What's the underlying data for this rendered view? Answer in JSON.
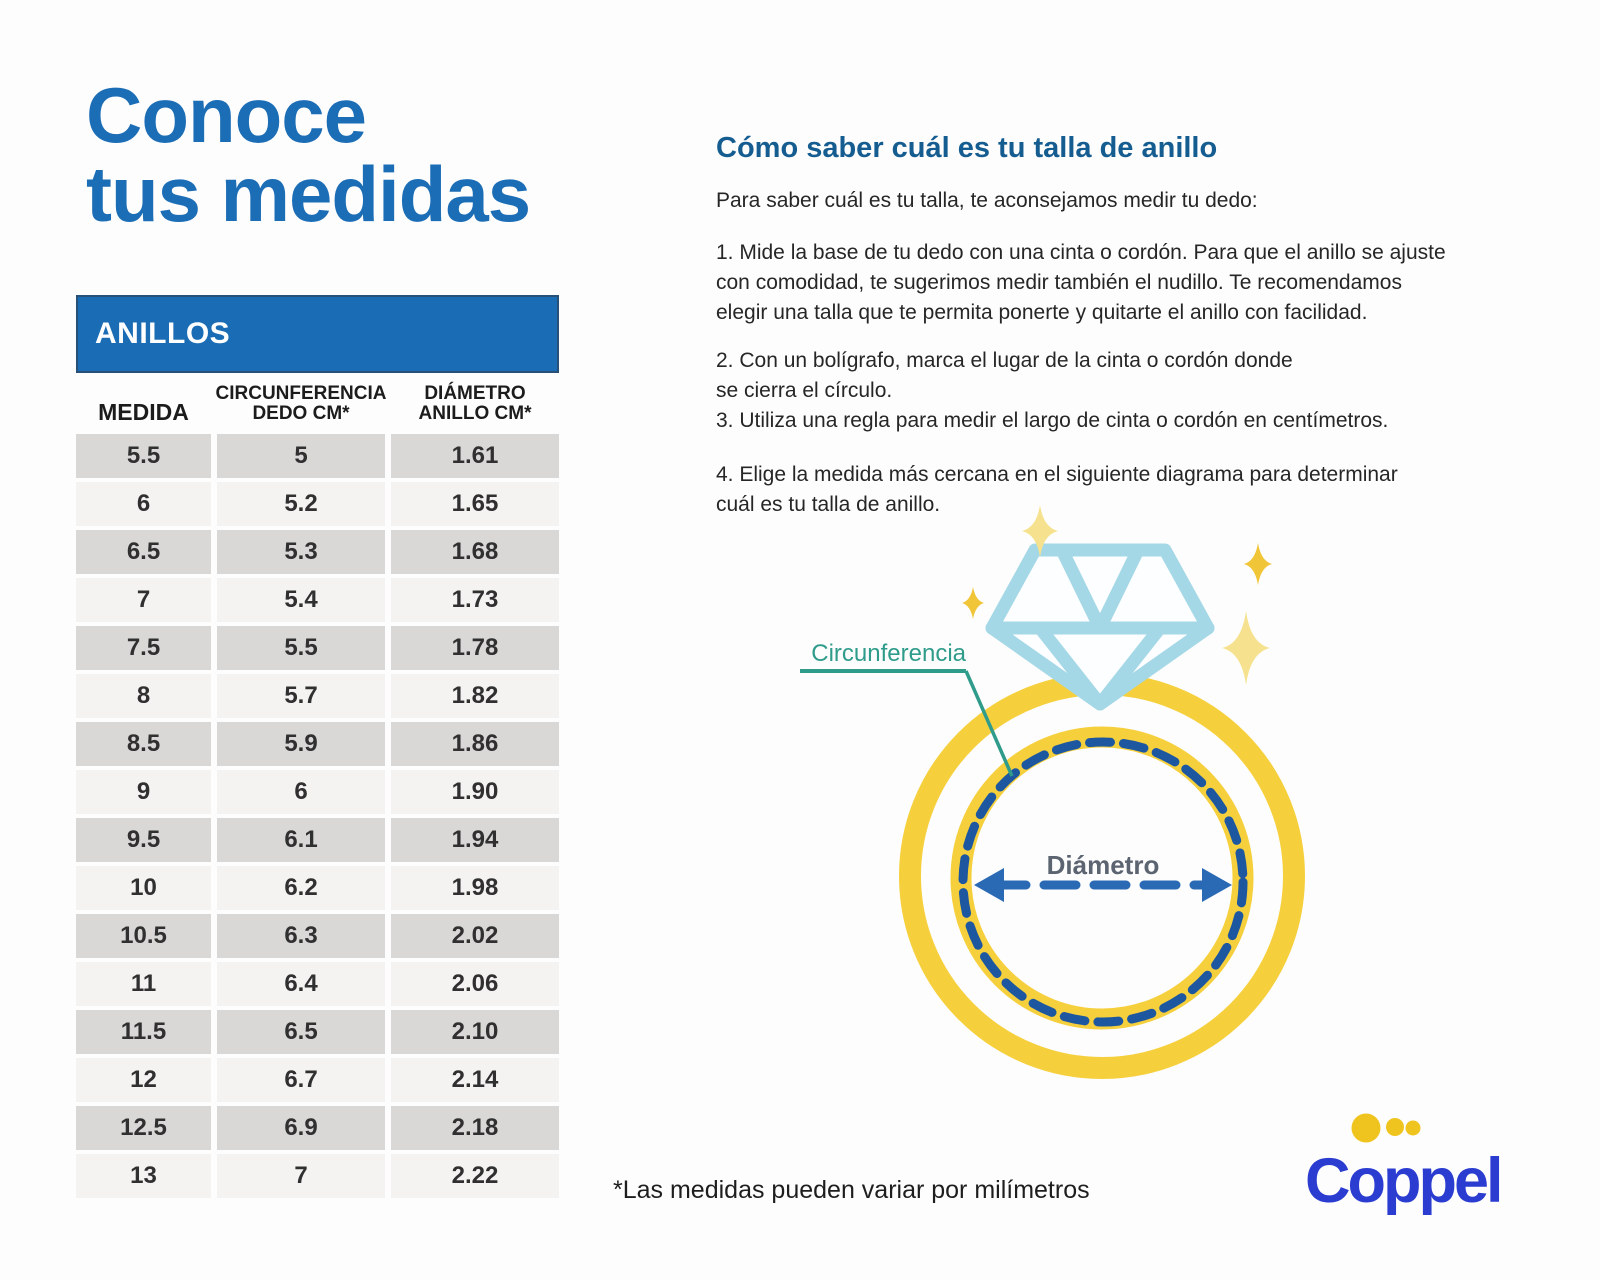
{
  "page": {
    "bg": "#fdfdfd"
  },
  "title": {
    "text": "Conoce\ntus medidas",
    "color": "#1b6db6"
  },
  "size_table": {
    "header": "ANILLOS",
    "columns": [
      "MEDIDA",
      "CIRCUNFERENCIA\nDEDO CM*",
      "DIÁMETRO\nANILLO CM*"
    ],
    "rows": [
      [
        "5.5",
        "5",
        "1.61"
      ],
      [
        "6",
        "5.2",
        "1.65"
      ],
      [
        "6.5",
        "5.3",
        "1.68"
      ],
      [
        "7",
        "5.4",
        "1.73"
      ],
      [
        "7.5",
        "5.5",
        "1.78"
      ],
      [
        "8",
        "5.7",
        "1.82"
      ],
      [
        "8.5",
        "5.9",
        "1.86"
      ],
      [
        "9",
        "6",
        "1.90"
      ],
      [
        "9.5",
        "6.1",
        "1.94"
      ],
      [
        "10",
        "6.2",
        "1.98"
      ],
      [
        "10.5",
        "6.3",
        "2.02"
      ],
      [
        "11",
        "6.4",
        "2.06"
      ],
      [
        "11.5",
        "6.5",
        "2.10"
      ],
      [
        "12",
        "6.7",
        "2.14"
      ],
      [
        "12.5",
        "6.9",
        "2.18"
      ],
      [
        "13",
        "7",
        "2.22"
      ]
    ],
    "colors": {
      "header_bg": "#1a6cb5",
      "header_text": "#ffffff",
      "row_dark": "#d9d8d7",
      "row_light": "#f4f3f2"
    }
  },
  "instructions": {
    "heading": "Cómo saber cuál es tu talla de anillo",
    "heading_color": "#155d90",
    "intro": "Para saber cuál es tu talla, te aconsejamos medir tu dedo:",
    "step1": "1. Mide la base de tu dedo con una cinta o cordón. Para que el anillo se ajuste\ncon comodidad, te sugerimos medir también el nudillo. Te recomendamos\nelegir una talla que te permita ponerte y quitarte el anillo con facilidad.",
    "steps_2_3": "2. Con un bolígrafo, marca el lugar de la cinta o cordón donde\nse cierra el círculo.\n3. Utiliza una regla para medir el largo de cinta o cordón en centímetros.",
    "step4": "4. Elige la medida más cercana en el siguiente diagrama para determinar\ncuál es tu talla de anillo."
  },
  "diagram": {
    "circumference_label": "Circunferencia",
    "diameter_label": "Diámetro",
    "colors": {
      "gold": "#f6d03c",
      "sparkle_gold": "#f0c537",
      "sparkle_pale": "#f6e28e",
      "diamond": "#a5d8e6",
      "dashed_navy": "#1d57a0",
      "arrow_blue": "#2a69b4",
      "teal": "#2f9c8b",
      "diameter_text": "#5b6470"
    }
  },
  "footnote": "*Las medidas pueden variar por milímetros",
  "brand": {
    "name": "Coppel",
    "text_color": "#2b3cd0",
    "dot_color": "#f0c41f"
  }
}
